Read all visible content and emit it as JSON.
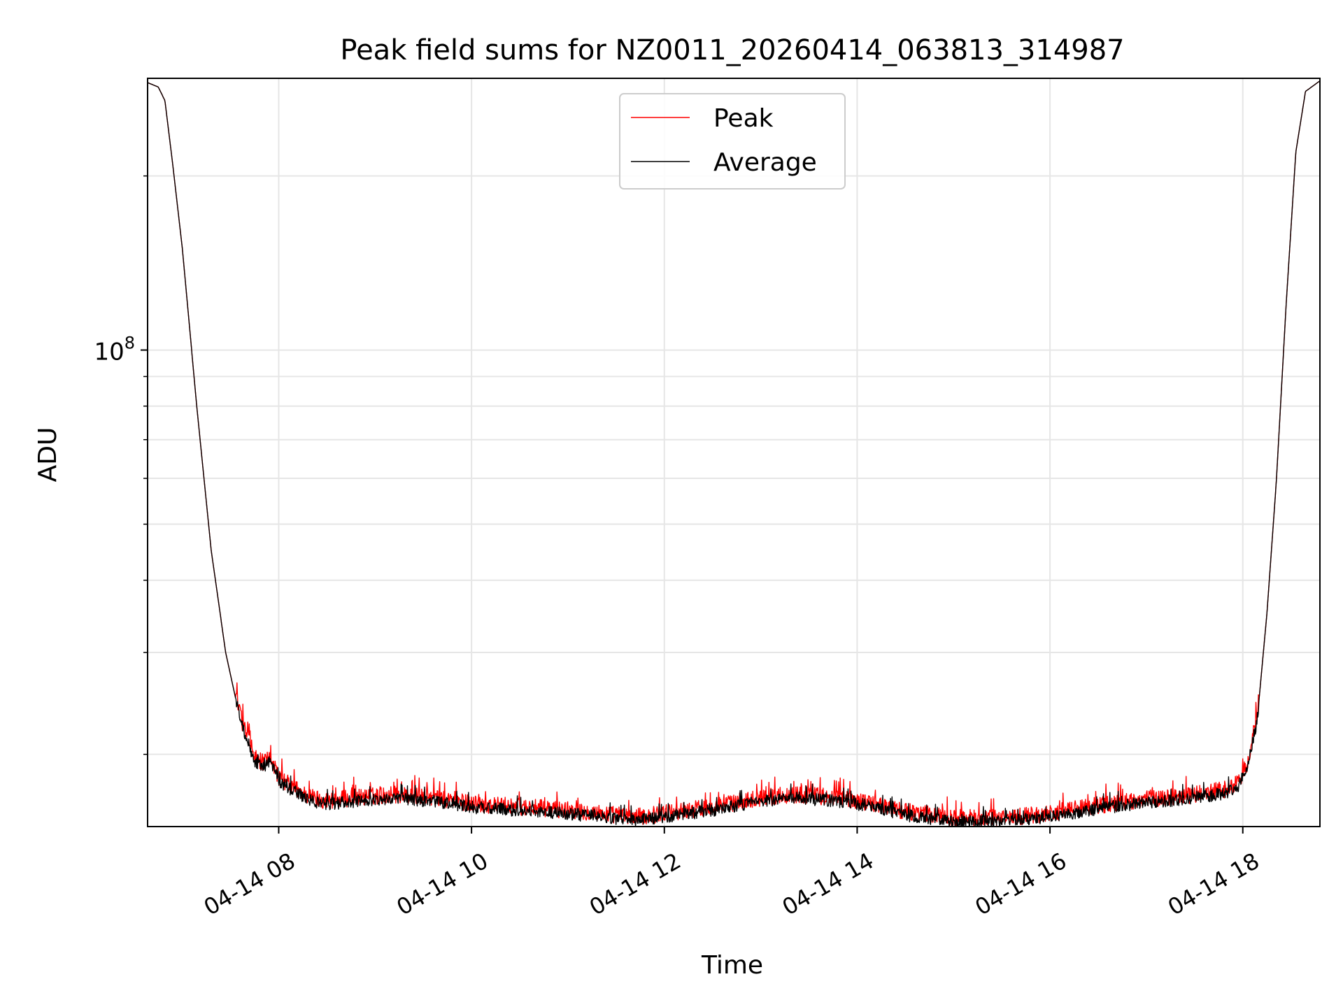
{
  "chart_data": {
    "type": "line",
    "title": "Peak field sums for NZ0011_20260414_063813_314987",
    "xlabel": "Time",
    "ylabel": "ADU",
    "y_scale": "log",
    "grid": true,
    "legend_position": "upper-center",
    "xlim_hours": [
      6.64,
      18.8
    ],
    "ylim": [
      15000000,
      295000000
    ],
    "x_ticks": [
      {
        "hour": 8,
        "label": "04-14 08"
      },
      {
        "hour": 10,
        "label": "04-14 10"
      },
      {
        "hour": 12,
        "label": "04-14 12"
      },
      {
        "hour": 14,
        "label": "04-14 14"
      },
      {
        "hour": 16,
        "label": "04-14 16"
      },
      {
        "hour": 18,
        "label": "04-14 18"
      }
    ],
    "y_major_ticks": [
      {
        "value": 100000000,
        "base": "10",
        "exponent": "8"
      }
    ],
    "y_minor_ticks": [
      20000000,
      30000000,
      40000000,
      50000000,
      60000000,
      70000000,
      80000000,
      90000000,
      200000000
    ],
    "series": [
      {
        "name": "Peak",
        "color": "#ff0000",
        "noise_fraction": 0.035,
        "offset_fraction": 0.015,
        "points": [
          [
            6.64,
            290000000
          ],
          [
            6.75,
            285000000
          ],
          [
            6.82,
            270000000
          ],
          [
            6.9,
            210000000
          ],
          [
            7.0,
            150000000
          ],
          [
            7.15,
            80000000
          ],
          [
            7.3,
            45000000
          ],
          [
            7.45,
            30000000
          ],
          [
            7.6,
            23000000
          ],
          [
            7.75,
            19500000
          ],
          [
            7.85,
            19000000
          ],
          [
            7.92,
            19500000
          ],
          [
            8.0,
            18000000
          ],
          [
            8.15,
            17300000
          ],
          [
            8.3,
            16700000
          ],
          [
            8.5,
            16400000
          ],
          [
            8.8,
            16600000
          ],
          [
            9.2,
            16800000
          ],
          [
            9.6,
            16600000
          ],
          [
            10.0,
            16200000
          ],
          [
            10.5,
            16000000
          ],
          [
            11.0,
            15800000
          ],
          [
            11.5,
            15500000
          ],
          [
            11.7,
            15350000
          ],
          [
            12.0,
            15600000
          ],
          [
            12.5,
            16000000
          ],
          [
            13.0,
            16600000
          ],
          [
            13.4,
            16800000
          ],
          [
            13.8,
            16600000
          ],
          [
            14.1,
            16300000
          ],
          [
            14.5,
            15700000
          ],
          [
            15.0,
            15300000
          ],
          [
            15.5,
            15300000
          ],
          [
            16.0,
            15600000
          ],
          [
            16.5,
            16100000
          ],
          [
            17.0,
            16500000
          ],
          [
            17.5,
            16800000
          ],
          [
            17.8,
            17100000
          ],
          [
            17.95,
            17600000
          ],
          [
            18.05,
            19000000
          ],
          [
            18.15,
            23000000
          ],
          [
            18.25,
            35000000
          ],
          [
            18.35,
            60000000
          ],
          [
            18.45,
            120000000
          ],
          [
            18.55,
            220000000
          ],
          [
            18.65,
            280000000
          ],
          [
            18.8,
            292000000
          ]
        ]
      },
      {
        "name": "Average",
        "color": "#000000",
        "noise_fraction": 0.025,
        "offset_fraction": 0.0,
        "points": [
          [
            6.64,
            290000000
          ],
          [
            6.75,
            285000000
          ],
          [
            6.82,
            270000000
          ],
          [
            6.9,
            210000000
          ],
          [
            7.0,
            150000000
          ],
          [
            7.15,
            80000000
          ],
          [
            7.3,
            45000000
          ],
          [
            7.45,
            30000000
          ],
          [
            7.6,
            23000000
          ],
          [
            7.75,
            19500000
          ],
          [
            7.85,
            19000000
          ],
          [
            7.92,
            19500000
          ],
          [
            8.0,
            18000000
          ],
          [
            8.15,
            17300000
          ],
          [
            8.3,
            16700000
          ],
          [
            8.5,
            16400000
          ],
          [
            8.8,
            16600000
          ],
          [
            9.2,
            16800000
          ],
          [
            9.6,
            16600000
          ],
          [
            10.0,
            16200000
          ],
          [
            10.5,
            16000000
          ],
          [
            11.0,
            15800000
          ],
          [
            11.5,
            15500000
          ],
          [
            11.7,
            15350000
          ],
          [
            12.0,
            15600000
          ],
          [
            12.5,
            16000000
          ],
          [
            13.0,
            16600000
          ],
          [
            13.4,
            16800000
          ],
          [
            13.8,
            16600000
          ],
          [
            14.1,
            16300000
          ],
          [
            14.5,
            15700000
          ],
          [
            15.0,
            15300000
          ],
          [
            15.5,
            15300000
          ],
          [
            16.0,
            15600000
          ],
          [
            16.5,
            16100000
          ],
          [
            17.0,
            16500000
          ],
          [
            17.5,
            16800000
          ],
          [
            17.8,
            17100000
          ],
          [
            17.95,
            17600000
          ],
          [
            18.05,
            19000000
          ],
          [
            18.15,
            23000000
          ],
          [
            18.25,
            35000000
          ],
          [
            18.35,
            60000000
          ],
          [
            18.45,
            120000000
          ],
          [
            18.55,
            220000000
          ],
          [
            18.65,
            280000000
          ],
          [
            18.8,
            292000000
          ]
        ]
      }
    ]
  }
}
